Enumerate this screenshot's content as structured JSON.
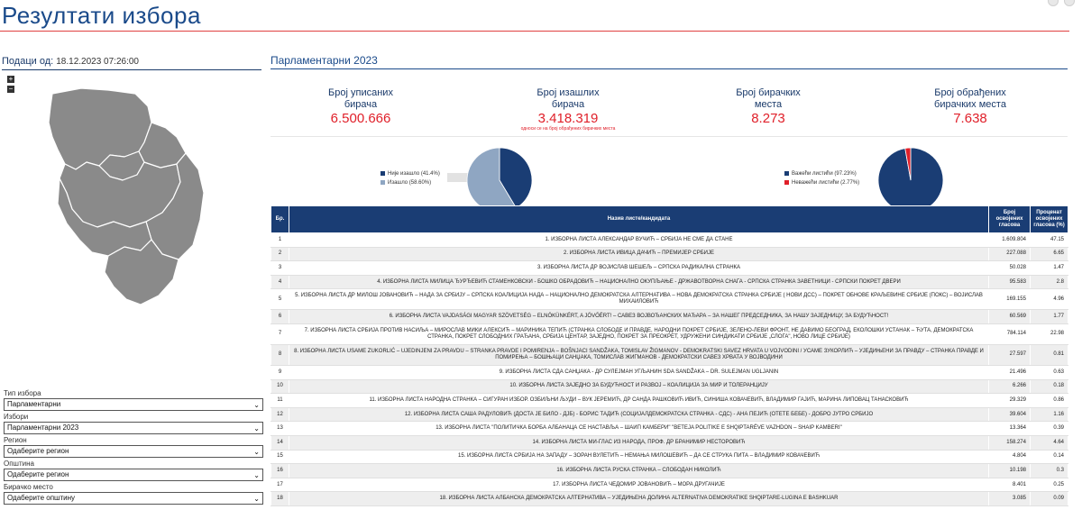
{
  "page": {
    "title": "Резултати избора",
    "data_from_label": "Подаци од:",
    "data_from_value": "18.12.2023 07:26:00"
  },
  "map": {
    "zoom_in": "+",
    "zoom_out": "−",
    "fill_color": "#8a8a8a",
    "border_color": "#ffffff"
  },
  "filters": [
    {
      "label": "Тип избора",
      "value": "Парламентарни"
    },
    {
      "label": "Избори",
      "value": "Парламентарни 2023"
    },
    {
      "label": "Регион",
      "value": "Одаберите регион"
    },
    {
      "label": "Општина",
      "value": "Одаберите регион"
    },
    {
      "label": "Бирачко место",
      "value": "Одаберите општину"
    }
  ],
  "election": {
    "title": "Парламентарни 2023",
    "stats": [
      {
        "label1": "Број уписаних",
        "label2": "бирача",
        "value": "6.500.666",
        "note": ""
      },
      {
        "label1": "Број изашлих",
        "label2": "бирача",
        "value": "3.418.319",
        "note": "односи се на број обрађених бирачких места"
      },
      {
        "label1": "Број бирачких",
        "label2": "места",
        "value": "8.273",
        "note": ""
      },
      {
        "label1": "Број обрађених",
        "label2": "бирачких места",
        "value": "7.638",
        "note": ""
      }
    ]
  },
  "charts": {
    "turnout": {
      "legend": [
        {
          "label": "Није изашло (41.4%)",
          "color": "#1a3d74",
          "value": 41.4
        },
        {
          "label": "Изашло (58.60%)",
          "color": "#8fa6c2",
          "value": 58.6
        }
      ]
    },
    "ballots": {
      "legend": [
        {
          "label": "Важећи листићи (97.23%)",
          "color": "#1a3d74",
          "value": 97.23
        },
        {
          "label": "Неважећи листићи (2.77%)",
          "color": "#e0202a",
          "value": 2.77
        }
      ]
    }
  },
  "table": {
    "headers": {
      "num": "Бр.",
      "name": "Назив листе/кандидата",
      "votes1": "Број",
      "votes2": "освојених",
      "votes3": "гласова",
      "pct1": "Проценат",
      "pct2": "освојених",
      "pct3": "гласова (%)"
    },
    "rows": [
      {
        "n": "1",
        "name": "1. ИЗБОРНА ЛИСТА АЛЕКСАНДАР ВУЧИЋ – СРБИЈА НЕ СМЕ ДА СТАНЕ",
        "votes": "1.609.804",
        "pct": "47.15"
      },
      {
        "n": "2",
        "name": "2. ИЗБОРНА ЛИСТА ИВИЦА ДАЧИЋ – ПРЕМИЈЕР СРБИЈЕ",
        "votes": "227.088",
        "pct": "6.65"
      },
      {
        "n": "3",
        "name": "3. ИЗБОРНА ЛИСТА ДР ВОЈИСЛАВ ШЕШЕЉ – СРПСКА РАДИКАЛНА СТРАНКА",
        "votes": "50.028",
        "pct": "1.47"
      },
      {
        "n": "4",
        "name": "4. ИЗБОРНА ЛИСТА МИЛИЦА ЂУРЂЕВИЋ СТАМЕНКОВСКИ - БОШКО ОБРАДОВИЋ – НАЦИОНАЛНО ОКУПЉАЊЕ - ДРЖАВОТВОРНА СНАГА - СРПСКА СТРАНКА ЗАВЕТНИЦИ - СРПСКИ ПОКРЕТ ДВЕРИ",
        "votes": "95.583",
        "pct": "2.8"
      },
      {
        "n": "5",
        "name": "5. ИЗБОРНА ЛИСТА ДР МИЛОШ ЈОВАНОВИЋ – НАДА ЗА СРБИЈУ – СРПСКА КОАЛИЦИЈА НАДА – НАЦИОНАЛНО ДЕМОКРАТСКА АЛТЕРНАТИВА – НОВА ДЕМОКРАТСКА СТРАНКА СРБИЈЕ ( НОВИ ДСС) – ПОКРЕТ ОБНОВЕ КРАЉЕВИНЕ СРБИЈЕ (ПОКС) – ВОЈИСЛАВ МИХАИЛОВИЋ",
        "votes": "169.155",
        "pct": "4.96"
      },
      {
        "n": "6",
        "name": "6. ИЗБОРНА ЛИСТА VAJDASÁGI MAGYAR SZÖVETSÉG – ELNÖKÜNKÉRT, A JÖVŐÉRT! – САВЕЗ ВОЈВОЂАНСКИХ МАЂАРА – ЗА НАШЕГ ПРЕДСЕДНИКА, ЗА НАШУ ЗАЈЕДНИЦУ, ЗА БУДУЋНОСТ!",
        "votes": "60.569",
        "pct": "1.77"
      },
      {
        "n": "7",
        "name": "7. ИЗБОРНА ЛИСТА СРБИЈА ПРОТИВ НАСИЉА – МИРОСЛАВ МИКИ АЛЕКСИЋ – МАРИНИКА ТЕПИЋ (СТРАНКА СЛОБОДЕ И ПРАВДЕ, НАРОДНИ ПОКРЕТ СРБИЈЕ, ЗЕЛЕНО-ЛЕВИ ФРОНТ, НЕ ДАВИМО БЕОГРАД, ЕКОЛОШКИ УСТАНАК – ЋУТА, ДЕМОКРАТСКА СТРАНКА, ПОКРЕТ СЛОБОДНИХ ГРАЂАНА, СРБИЈА ЦЕНТАР, ЗАЈЕДНО, ПОКРЕТ ЗА ПРЕОКРЕТ, УДРУЖЕНИ СИНДИКАТИ СРБИЈЕ „СЛОГА\", НОВО ЛИЦЕ СРБИЈЕ)",
        "votes": "784.114",
        "pct": "22.98"
      },
      {
        "n": "8",
        "name": "8. ИЗБОРНА ЛИСТА USAME ZUKORLIĆ – UJEDINJENI ZA PRAVDU – STRANKA PRAVDE I POMIRENJA – BOŠNJACI SANDŽAKA, TOMISLAV ŽIGMANOV - DEMOKRATSKI SAVEZ HRVATA U VOJVODINI / УСАМЕ ЗУКОРЛИЋ – УЈЕДИЊЕНИ ЗА ПРАВДУ – СТРАНКА ПРАВДЕ И ПОМИРЕЊА – БОШЊАЦИ САНЏАКА, ТОМИСЛАВ ЖИГМАНОВ - ДЕМОКРАТСКИ САВЕЗ ХРВАТА У ВОЈВОДИНИ",
        "votes": "27.597",
        "pct": "0.81"
      },
      {
        "n": "9",
        "name": "9. ИЗБОРНА ЛИСТА СДА САНЏАКА - ДР СУЛЕЈМАН УГЉАНИН SDA SANDŽAKA – DR. SULEJMAN UGLJANIN",
        "votes": "21.496",
        "pct": "0.63"
      },
      {
        "n": "10",
        "name": "10. ИЗБОРНА ЛИСТА ЗАЈЕДНО ЗА БУДУЋНОСТ И РАЗВОЈ – КОАЛИЦИЈА ЗА МИР И ТОЛЕРАНЦИЈУ",
        "votes": "6.266",
        "pct": "0.18"
      },
      {
        "n": "11",
        "name": "11. ИЗБОРНА ЛИСТА НАРОДНА СТРАНКА – СИГУРАН ИЗБОР. ОЗБИЉНИ ЉУДИ – ВУК ЈЕРЕМИЋ, ДР САНДА РАШКОВИЋ ИВИЋ, СИНИША КОВАЧЕВИЋ, ВЛАДИМИР ГАЈИЋ, МАРИНА ЛИПОВАЦ ТАНАСКОВИЋ",
        "votes": "29.329",
        "pct": "0.86"
      },
      {
        "n": "12",
        "name": "12. ИЗБОРНА ЛИСТА САША РАДУЛОВИЋ (ДОСТА ЈЕ БИЛО - ДЈБ) - БОРИС ТАДИЋ (СОЦИЈАЛДЕМОКРАТСКА СТРАНКА - СДС) - АНА ПЕЈИЋ (ОТЕТЕ БЕБЕ) - ДОБРО ЈУТРО СРБИЈО",
        "votes": "39.604",
        "pct": "1.16"
      },
      {
        "n": "13",
        "name": "13. ИЗБОРНА ЛИСТА \"ПОЛИТИЧКА БОРБА АЛБАНАЦА СЕ НАСТАВЉА – ШАИП КАМБЕРИ\" \"BETEJA POLITIKE E SHQIPTARËVE VAZHDON – SHAIP KAMBERI\"",
        "votes": "13.364",
        "pct": "0.39"
      },
      {
        "n": "14",
        "name": "14. ИЗБОРНА ЛИСТА МИ-ГЛАС ИЗ НАРОДА, ПРОФ. ДР БРАНИМИР НЕСТОРОВИЋ",
        "votes": "158.274",
        "pct": "4.64"
      },
      {
        "n": "15",
        "name": "15. ИЗБОРНА ЛИСТА СРБИЈА НА ЗАПАДУ – ЗОРАН ВУЛЕТИЋ – НЕМАЊА МИЛОШЕВИЋ – ДА СЕ СТРУКА ПИТА – ВЛАДИМИР КОВАЧЕВИЋ",
        "votes": "4.804",
        "pct": "0.14"
      },
      {
        "n": "16",
        "name": "16. ИЗБОРНА ЛИСТА РУСКА СТРАНКА – СЛОБОДАН НИКОЛИЋ",
        "votes": "10.198",
        "pct": "0.3"
      },
      {
        "n": "17",
        "name": "17. ИЗБОРНА ЛИСТА ЧЕДОМИР ЈОВАНОВИЋ – МОРА ДРУГАЧИЈЕ",
        "votes": "8.401",
        "pct": "0.25"
      },
      {
        "n": "18",
        "name": "18. ИЗБОРНА ЛИСТА АЛБАНСКА ДЕМОКРАТСКА АЛТЕРНАТИВА – УЈЕДИЊЕНА ДОЛИНА ALTERNATIVA DEMOKRATIKE SHQIPTARE-LUGINA E BASHKUAR",
        "votes": "3.085",
        "pct": "0.09"
      }
    ]
  }
}
